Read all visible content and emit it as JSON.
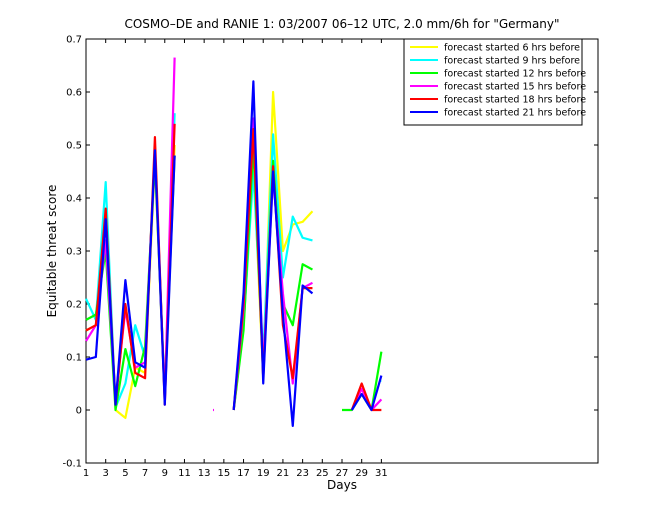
{
  "chart_data": {
    "type": "line",
    "title": "COSMO–DE and RANIE 1: 03/2007 06–12 UTC, 2.0 mm/6h for \"Germany\"",
    "xlabel": "Days",
    "ylabel": "Equitable threat score",
    "xlim": [
      1,
      53
    ],
    "ylim": [
      -0.1,
      0.7
    ],
    "xticks": [
      1,
      3,
      5,
      7,
      9,
      11,
      13,
      15,
      17,
      19,
      21,
      23,
      25,
      27,
      29,
      31
    ],
    "yticks": [
      -0.1,
      0,
      0.1,
      0.2,
      0.3,
      0.4,
      0.5,
      0.6,
      0.7
    ],
    "x": [
      1,
      2,
      3,
      4,
      5,
      6,
      7,
      8,
      9,
      10,
      11,
      12,
      13,
      14,
      15,
      16,
      17,
      18,
      19,
      20,
      21,
      22,
      23,
      24,
      25,
      26,
      27,
      28,
      29,
      30,
      31
    ],
    "legend_position": "top-right",
    "grid": false,
    "series": [
      {
        "name": "forecast started 6 hrs before",
        "color": "#ffff00",
        "values": [
          0.15,
          0.16,
          0.38,
          0.0,
          -0.015,
          0.08,
          0.07,
          0.47,
          0.02,
          0.5,
          null,
          null,
          null,
          null,
          null,
          0.0,
          0.16,
          0.47,
          0.06,
          0.6,
          0.3,
          0.35,
          0.355,
          0.375,
          null,
          null,
          null,
          null,
          null,
          null,
          null
        ]
      },
      {
        "name": "forecast started 9 hrs before",
        "color": "#00ffff",
        "values": [
          0.21,
          0.17,
          0.43,
          0.005,
          0.05,
          0.16,
          0.1,
          0.49,
          0.02,
          0.56,
          null,
          null,
          null,
          null,
          null,
          0.0,
          0.16,
          0.45,
          0.1,
          0.52,
          0.25,
          0.365,
          0.325,
          0.32,
          null,
          null,
          null,
          null,
          null,
          null,
          0.055
        ]
      },
      {
        "name": "forecast started 12 hrs before",
        "color": "#00ff00",
        "values": [
          0.17,
          0.18,
          0.3,
          0.0,
          0.115,
          0.045,
          0.12,
          0.47,
          0.03,
          0.48,
          null,
          null,
          null,
          null,
          null,
          0.0,
          0.15,
          0.5,
          0.07,
          0.47,
          0.2,
          0.16,
          0.275,
          0.265,
          null,
          null,
          0.0,
          0.0,
          0.03,
          0.0,
          0.11
        ]
      },
      {
        "name": "forecast started 15 hrs before",
        "color": "#ff00ff",
        "values": [
          0.13,
          0.16,
          0.32,
          0.02,
          0.19,
          0.08,
          0.09,
          0.49,
          0.02,
          0.665,
          null,
          null,
          null,
          0.0,
          null,
          0.0,
          0.19,
          0.55,
          0.08,
          0.44,
          0.22,
          0.05,
          0.23,
          0.24,
          null,
          null,
          null,
          0.0,
          0.04,
          0.0,
          0.02
        ]
      },
      {
        "name": "forecast started 18 hrs before",
        "color": "#ff0000",
        "values": [
          0.15,
          0.16,
          0.38,
          0.01,
          0.2,
          0.07,
          0.06,
          0.515,
          0.01,
          0.54,
          null,
          null,
          null,
          null,
          null,
          0.0,
          0.2,
          0.53,
          0.06,
          0.46,
          0.16,
          0.06,
          0.23,
          0.23,
          null,
          null,
          null,
          0.0,
          0.05,
          0.0,
          0.0
        ]
      },
      {
        "name": "forecast started 21 hrs before",
        "color": "#0000ff",
        "values": [
          0.095,
          0.1,
          0.36,
          0.01,
          0.245,
          0.09,
          0.08,
          0.49,
          0.01,
          0.48,
          null,
          null,
          null,
          null,
          null,
          0.0,
          0.22,
          0.62,
          0.05,
          0.45,
          0.18,
          -0.03,
          0.235,
          0.22,
          null,
          null,
          null,
          0.0,
          0.03,
          0.0,
          0.065
        ]
      }
    ]
  }
}
